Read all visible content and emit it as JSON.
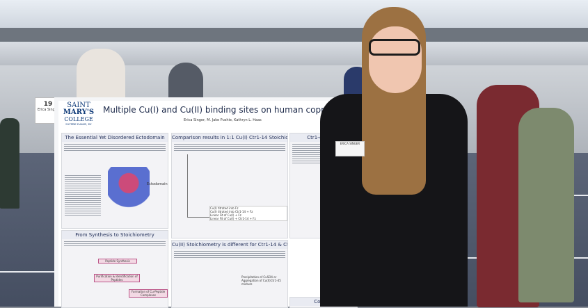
{
  "poster": {
    "title": "Multiple Cu(I) and Cu(II) binding sites on human copper transporter 1 ectodomain",
    "authors": "Erica Singer, M. Jake Pushie, Kathryn L. Haas",
    "logo": {
      "line1": "SAINT",
      "line2": "MARY'S",
      "line3": "COLLEGE",
      "line4": "NOTRE DAME, IN"
    },
    "sections": {
      "ectodomain": "The Essential Yet Disordered Ectodomain",
      "comparison": "Comparison results in 1:1 Cu(I) Ctr1-14 Stoichiometry",
      "ctr1_45": "Ctr1-45 binds",
      "synthesis": "From Synthesis to Stoichiometry",
      "cu2_stoich": "Cu(II) Stoichiometry is different for Ctr1-14 & Ctr1-45",
      "conclusion": "Conclus"
    },
    "figure_labels": {
      "ectodomain_label": "Ectodomain",
      "flow_1": "Peptide Synthesis",
      "flow_2": "Purification & Identification of Peptides",
      "flow_3": "Formation of Cu-Peptide Complexes",
      "precip": "Precipitation of CuSO4 or Aggregation of Cu(II)Ctr1-45 mixture"
    },
    "legend": [
      "Cu(I) titrated into Fz",
      "Cu(I) titrated into Ctr1-14 + Fz",
      "Linear Fit of Cu(I) + Fz",
      "Linear Fit of Cu(I) + Ctr1-14 + Fz"
    ]
  },
  "side_sign": {
    "number": "19",
    "name": "Erica Singer"
  },
  "name_tag": "ERICA SINGER",
  "colors": {
    "poster_title": "#1d2a4a",
    "logo_blue": "#0e3a78",
    "floor": "#4f586b",
    "wall": "#c3c7cd"
  }
}
